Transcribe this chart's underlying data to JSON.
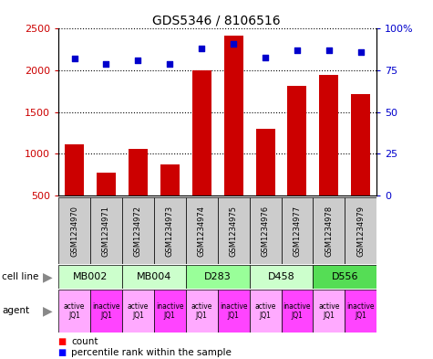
{
  "title": "GDS5346 / 8106516",
  "samples": [
    "GSM1234970",
    "GSM1234971",
    "GSM1234972",
    "GSM1234973",
    "GSM1234974",
    "GSM1234975",
    "GSM1234976",
    "GSM1234977",
    "GSM1234978",
    "GSM1234979"
  ],
  "counts": [
    1120,
    780,
    1060,
    870,
    2000,
    2420,
    1300,
    1820,
    1950,
    1720
  ],
  "percentiles": [
    82,
    79,
    81,
    79,
    88,
    91,
    83,
    87,
    87,
    86
  ],
  "cell_lines": [
    {
      "label": "MB002",
      "span": [
        0,
        2
      ],
      "color": "#ccffcc"
    },
    {
      "label": "MB004",
      "span": [
        2,
        4
      ],
      "color": "#ccffcc"
    },
    {
      "label": "D283",
      "span": [
        4,
        6
      ],
      "color": "#99ff99"
    },
    {
      "label": "D458",
      "span": [
        6,
        8
      ],
      "color": "#ccffcc"
    },
    {
      "label": "D556",
      "span": [
        8,
        10
      ],
      "color": "#55dd55"
    }
  ],
  "agents": [
    "active\nJQ1",
    "inactive\nJQ1",
    "active\nJQ1",
    "inactive\nJQ1",
    "active\nJQ1",
    "inactive\nJQ1",
    "active\nJQ1",
    "inactive\nJQ1",
    "active\nJQ1",
    "inactive\nJQ1"
  ],
  "agent_active_color": "#ffaaff",
  "agent_inactive_color": "#ff44ff",
  "bar_color": "#cc0000",
  "dot_color": "#0000cc",
  "ylim_left": [
    500,
    2500
  ],
  "ylim_right": [
    0,
    100
  ],
  "yticks_left": [
    500,
    1000,
    1500,
    2000,
    2500
  ],
  "yticks_right": [
    0,
    25,
    50,
    75,
    100
  ],
  "ytick_labels_left": [
    "500",
    "1000",
    "1500",
    "2000",
    "2500"
  ],
  "ytick_labels_right": [
    "0",
    "25",
    "50",
    "75",
    "100%"
  ],
  "sample_box_color": "#cccccc",
  "left_label_color": "#cc0000",
  "right_label_color": "#0000cc"
}
